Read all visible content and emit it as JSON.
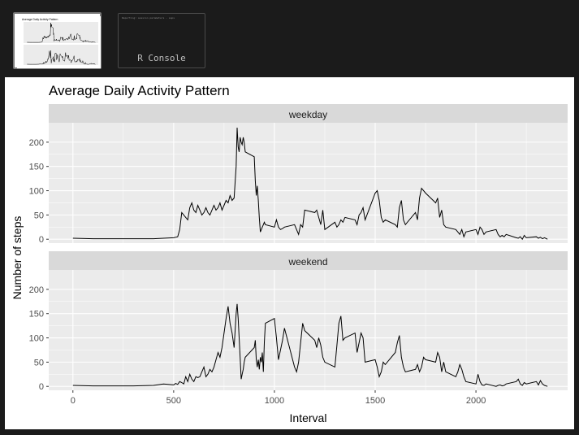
{
  "thumbnails": {
    "plot_title": "Average Daily Activity Pattern",
    "console_text": "Reporting: session parameters - saps",
    "console_label": "R Console"
  },
  "chart_data": {
    "type": "line",
    "title": "Average Daily Activity Pattern",
    "xlabel": "Interval",
    "ylabel": "Number of steps",
    "xlim": [
      -120,
      2455
    ],
    "ylim": [
      -8,
      240
    ],
    "xticks": [
      0,
      500,
      1000,
      1500,
      2000
    ],
    "yticks": [
      0,
      50,
      100,
      150,
      200
    ],
    "grid": true,
    "facets": [
      {
        "name": "weekday",
        "x": [
          0,
          100,
          200,
          300,
          400,
          450,
          500,
          510,
          520,
          530,
          540,
          550,
          560,
          570,
          580,
          590,
          600,
          610,
          620,
          630,
          640,
          650,
          660,
          670,
          680,
          690,
          700,
          710,
          720,
          730,
          740,
          750,
          760,
          770,
          780,
          790,
          800,
          810,
          815,
          820,
          825,
          830,
          835,
          840,
          845,
          850,
          855,
          900,
          905,
          910,
          915,
          920,
          925,
          930,
          935,
          940,
          945,
          950,
          955,
          1000,
          1010,
          1020,
          1030,
          1040,
          1050,
          1100,
          1110,
          1120,
          1130,
          1140,
          1150,
          1200,
          1210,
          1220,
          1230,
          1240,
          1250,
          1300,
          1310,
          1320,
          1330,
          1340,
          1350,
          1400,
          1410,
          1420,
          1430,
          1440,
          1450,
          1500,
          1510,
          1520,
          1530,
          1540,
          1550,
          1600,
          1610,
          1620,
          1630,
          1640,
          1650,
          1700,
          1710,
          1720,
          1730,
          1740,
          1750,
          1800,
          1810,
          1820,
          1830,
          1840,
          1850,
          1900,
          1910,
          1920,
          1930,
          1940,
          1950,
          2000,
          2010,
          2020,
          2030,
          2040,
          2050,
          2100,
          2110,
          2120,
          2130,
          2140,
          2150,
          2200,
          2210,
          2220,
          2230,
          2240,
          2250,
          2300,
          2310,
          2320,
          2330,
          2340,
          2355
        ],
        "values": [
          2,
          1,
          1,
          1,
          1,
          2,
          3,
          4,
          5,
          20,
          55,
          50,
          45,
          40,
          65,
          75,
          60,
          55,
          70,
          60,
          50,
          55,
          65,
          55,
          50,
          60,
          70,
          60,
          65,
          75,
          60,
          70,
          80,
          75,
          90,
          80,
          85,
          150,
          230,
          190,
          180,
          210,
          200,
          195,
          210,
          200,
          180,
          170,
          120,
          90,
          110,
          80,
          45,
          15,
          20,
          25,
          30,
          35,
          30,
          25,
          40,
          25,
          20,
          22,
          25,
          30,
          20,
          10,
          30,
          25,
          60,
          55,
          60,
          45,
          30,
          60,
          20,
          35,
          25,
          30,
          40,
          35,
          45,
          40,
          30,
          50,
          55,
          65,
          40,
          95,
          100,
          80,
          45,
          35,
          40,
          30,
          25,
          65,
          80,
          40,
          30,
          55,
          40,
          85,
          105,
          100,
          95,
          75,
          85,
          45,
          60,
          30,
          25,
          20,
          15,
          10,
          20,
          5,
          15,
          20,
          10,
          25,
          20,
          10,
          15,
          20,
          10,
          5,
          8,
          5,
          10,
          3,
          2,
          5,
          0,
          8,
          3,
          5,
          2,
          4,
          1,
          3,
          0
        ],
        "line_color": "#000000"
      },
      {
        "name": "weekend",
        "x": [
          0,
          100,
          200,
          300,
          400,
          450,
          500,
          510,
          520,
          530,
          540,
          550,
          560,
          570,
          580,
          590,
          600,
          610,
          620,
          630,
          640,
          650,
          660,
          670,
          680,
          690,
          700,
          710,
          720,
          730,
          740,
          750,
          760,
          770,
          780,
          790,
          800,
          810,
          815,
          820,
          825,
          830,
          835,
          840,
          845,
          850,
          855,
          900,
          905,
          910,
          915,
          920,
          925,
          930,
          935,
          940,
          945,
          950,
          955,
          1000,
          1010,
          1020,
          1030,
          1040,
          1050,
          1100,
          1110,
          1120,
          1130,
          1140,
          1150,
          1200,
          1210,
          1220,
          1230,
          1240,
          1250,
          1300,
          1310,
          1320,
          1330,
          1340,
          1350,
          1400,
          1410,
          1420,
          1430,
          1440,
          1450,
          1500,
          1510,
          1520,
          1530,
          1540,
          1550,
          1600,
          1610,
          1620,
          1630,
          1640,
          1650,
          1700,
          1710,
          1720,
          1730,
          1740,
          1750,
          1800,
          1810,
          1820,
          1830,
          1840,
          1850,
          1900,
          1910,
          1920,
          1930,
          1940,
          1950,
          2000,
          2010,
          2020,
          2030,
          2040,
          2050,
          2100,
          2110,
          2120,
          2130,
          2140,
          2150,
          2200,
          2210,
          2220,
          2230,
          2240,
          2250,
          2300,
          2310,
          2320,
          2330,
          2340,
          2355
        ],
        "values": [
          2,
          1,
          1,
          1,
          2,
          5,
          3,
          6,
          4,
          10,
          8,
          5,
          20,
          10,
          25,
          15,
          10,
          20,
          18,
          20,
          30,
          40,
          20,
          25,
          35,
          30,
          40,
          55,
          70,
          60,
          80,
          110,
          140,
          165,
          130,
          110,
          80,
          150,
          170,
          140,
          100,
          60,
          15,
          25,
          35,
          50,
          60,
          80,
          95,
          55,
          40,
          55,
          35,
          60,
          50,
          70,
          30,
          90,
          130,
          140,
          100,
          55,
          75,
          95,
          120,
          40,
          30,
          50,
          90,
          130,
          115,
          95,
          80,
          100,
          85,
          60,
          50,
          40,
          85,
          130,
          145,
          95,
          100,
          110,
          70,
          90,
          110,
          100,
          50,
          55,
          40,
          20,
          30,
          50,
          45,
          70,
          90,
          105,
          60,
          40,
          30,
          35,
          45,
          30,
          40,
          60,
          55,
          50,
          70,
          60,
          30,
          50,
          30,
          20,
          30,
          45,
          35,
          20,
          10,
          5,
          25,
          10,
          3,
          2,
          5,
          0,
          2,
          3,
          1,
          2,
          5,
          10,
          15,
          5,
          2,
          8,
          5,
          10,
          3,
          12,
          5,
          2,
          0
        ],
        "line_color": "#000000"
      }
    ]
  }
}
